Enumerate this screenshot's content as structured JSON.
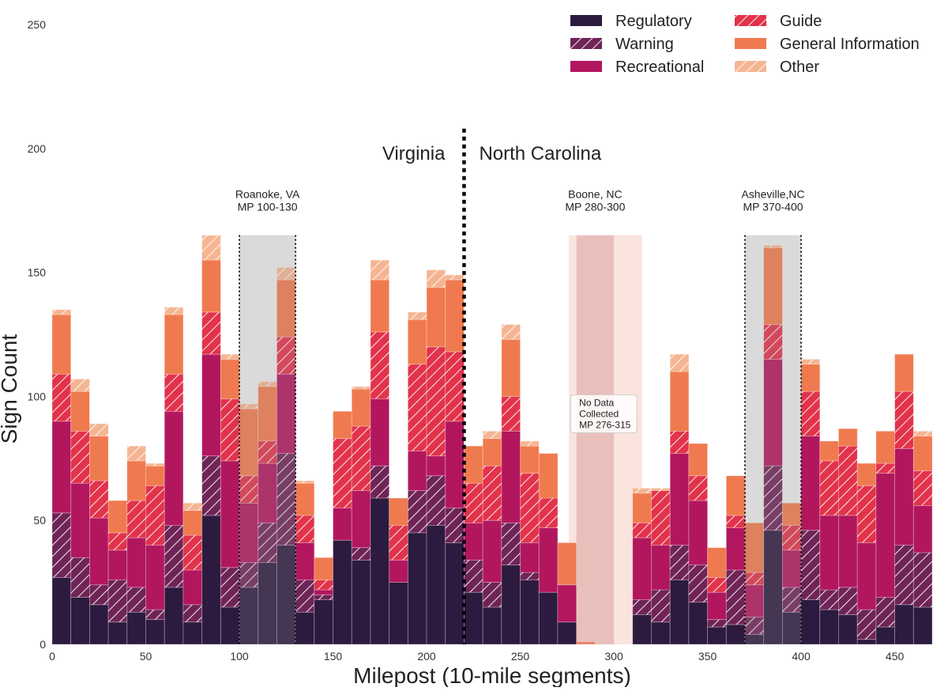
{
  "chart_data": {
    "type": "bar",
    "stacked": true,
    "xlabel": "Milepost (10-mile segments)",
    "ylabel": "Sign Count",
    "xlim": [
      0,
      470
    ],
    "ylim": [
      0,
      250
    ],
    "x_ticks": [
      0,
      50,
      100,
      150,
      200,
      250,
      300,
      350,
      400,
      450
    ],
    "y_ticks": [
      0,
      50,
      100,
      150,
      200,
      250
    ],
    "bin_width": 10,
    "bin_step": 10,
    "x": [
      5,
      15,
      25,
      35,
      45,
      55,
      65,
      75,
      85,
      95,
      105,
      115,
      125,
      135,
      145,
      155,
      165,
      175,
      185,
      195,
      205,
      215,
      225,
      235,
      245,
      255,
      265,
      275,
      285,
      295,
      305,
      315,
      325,
      335,
      345,
      355,
      365,
      375,
      385,
      395,
      405,
      415,
      425,
      435,
      445,
      455,
      465
    ],
    "series": [
      {
        "name": "Regulatory",
        "color": "#2d1a3f",
        "hatch": false,
        "values": [
          27,
          19,
          16,
          9,
          13,
          10,
          23,
          9,
          52,
          15,
          23,
          33,
          40,
          13,
          18,
          42,
          34,
          59,
          25,
          45,
          48,
          41,
          21,
          15,
          32,
          26,
          21,
          9,
          0,
          0,
          0,
          12,
          9,
          26,
          17,
          7,
          8,
          4,
          46,
          13,
          18,
          14,
          12,
          2,
          7,
          16,
          15
        ]
      },
      {
        "name": "Warning",
        "color": "#6f2456",
        "hatch": true,
        "values": [
          26,
          16,
          8,
          17,
          10,
          4,
          25,
          7,
          24,
          16,
          10,
          16,
          37,
          13,
          2,
          0,
          5,
          13,
          0,
          17,
          20,
          14,
          13,
          10,
          17,
          3,
          0,
          0,
          0,
          0,
          0,
          6,
          13,
          14,
          15,
          3,
          22,
          7,
          26,
          10,
          28,
          8,
          11,
          12,
          12,
          24,
          22
        ]
      },
      {
        "name": "Recreational",
        "color": "#b2175e",
        "hatch": false,
        "values": [
          37,
          30,
          27,
          12,
          20,
          26,
          46,
          14,
          41,
          43,
          24,
          24,
          32,
          15,
          2,
          13,
          23,
          27,
          9,
          16,
          8,
          35,
          15,
          25,
          37,
          12,
          26,
          15,
          0,
          0,
          0,
          25,
          18,
          37,
          26,
          11,
          17,
          13,
          43,
          15,
          38,
          30,
          29,
          27,
          50,
          39,
          19
        ]
      },
      {
        "name": "Guide",
        "color": "#e2334b",
        "hatch": true,
        "values": [
          19,
          21,
          15,
          7,
          15,
          24,
          15,
          14,
          17,
          25,
          11,
          9,
          15,
          11,
          4,
          28,
          26,
          27,
          14,
          35,
          44,
          28,
          16,
          22,
          14,
          28,
          12,
          0,
          0,
          0,
          0,
          6,
          22,
          9,
          10,
          6,
          5,
          5,
          14,
          10,
          18,
          22,
          28,
          23,
          4,
          23,
          14
        ]
      },
      {
        "name": "General Information",
        "color": "#f07a4f",
        "hatch": false,
        "values": [
          24,
          16,
          18,
          13,
          16,
          8,
          24,
          10,
          21,
          16,
          27,
          22,
          23,
          13,
          9,
          11,
          15,
          21,
          11,
          18,
          24,
          29,
          15,
          11,
          23,
          11,
          18,
          17,
          1,
          0,
          0,
          12,
          0,
          24,
          13,
          12,
          16,
          20,
          31,
          9,
          11,
          8,
          7,
          9,
          13,
          15,
          14
        ]
      },
      {
        "name": "Other",
        "color": "#f5b592",
        "hatch": true,
        "values": [
          2,
          5,
          5,
          0,
          6,
          1,
          3,
          3,
          10,
          2,
          2,
          2,
          5,
          1,
          0,
          0,
          1,
          8,
          0,
          3,
          7,
          2,
          0,
          3,
          6,
          2,
          0,
          0,
          0,
          0,
          0,
          2,
          1,
          7,
          0,
          0,
          0,
          0,
          1,
          0,
          2,
          0,
          0,
          0,
          0,
          0,
          2
        ]
      }
    ],
    "state_divider": {
      "x": 220,
      "left_label": "Virginia",
      "right_label": "North Carolina"
    },
    "city_regions": [
      {
        "label": "Roanoke, VA\nMP 100-130",
        "start": 100,
        "end": 130,
        "style": "gray-dotted"
      },
      {
        "label": "Boone, NC\nMP 280-300",
        "start": 280,
        "end": 300,
        "style": "pink"
      },
      {
        "label": "Asheville,NC\nMP 370-400",
        "start": 370,
        "end": 400,
        "style": "gray-dotted"
      }
    ],
    "no_data_region": {
      "start": 276,
      "end": 315,
      "label": "No Data\nCollected\nMP 276-315"
    },
    "legend": {
      "placement": "top-right",
      "columns": 2
    },
    "grid": false
  }
}
